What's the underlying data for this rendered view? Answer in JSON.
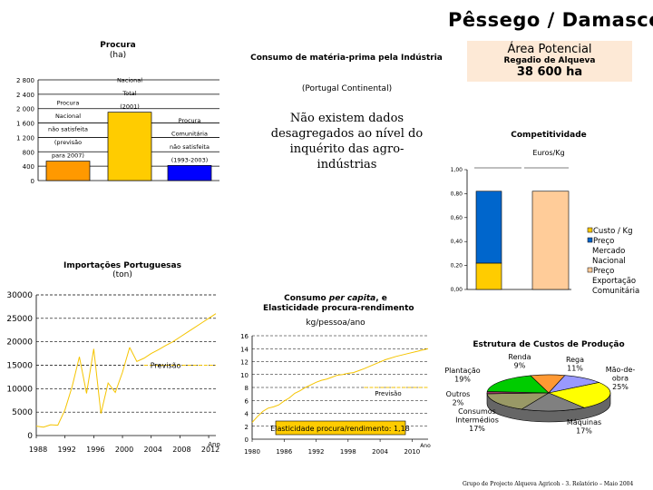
{
  "header": {
    "title": "Pêssego / Damasco",
    "area_title": "Área Potencial",
    "area_subtitle": "Regadio de Alqueva",
    "area_value": "38 600 ha"
  },
  "texts": {
    "consumo_title": "Consumo de matéria-prima pela Indústria",
    "portugal": "(Portugal Continental)",
    "nodata_1": "Não existem dados",
    "nodata_2": "desagregados ao nível do",
    "nodata_3": "inquérito das agro-indústrias",
    "footer": "Grupo de Projecto Alqueva Agricoh - 3. Relatório – Maio 2004"
  },
  "colors": {
    "orange": "#ff9900",
    "yellow": "#ffcc00",
    "blue": "#0000ff",
    "steel": "#0066cc",
    "peach": "#ffcc99",
    "line": "#f5c400"
  },
  "chart_data": [
    {
      "type": "bar",
      "title": "Procura",
      "subtitle": "(ha)",
      "categories": [
        "Procura Nacional não satisfeita (previsão para 2007)",
        "Procura Nacional Total (2001)",
        "Procura Comunitária não satisfeita (1993-2003)"
      ],
      "category_labels": [
        [
          "Procura",
          "Nacional",
          "não satisfeita",
          "(previsão",
          "para 2007)"
        ],
        [
          "Procura",
          "Nacional",
          "Total",
          "(2001)"
        ],
        [
          "Procura",
          "Comunitária",
          "não satisfeita",
          "(1993-2003)"
        ]
      ],
      "values": [
        540,
        1900,
        420
      ],
      "ylim": [
        0,
        2800
      ],
      "ticks": [
        "0",
        "400",
        "800",
        "1 200",
        "1 600",
        "2 000",
        "2 400",
        "2 800"
      ],
      "tick_values": [
        0,
        400,
        800,
        1200,
        1600,
        2000,
        2400,
        2800
      ]
    },
    {
      "type": "line",
      "title": "Importações Portuguesas",
      "subtitle": "(ton)",
      "x": [
        1988,
        1989,
        1990,
        1991,
        1992,
        1993,
        1994,
        1995,
        1996,
        1997,
        1998,
        1999,
        2000,
        2001
      ],
      "y": [
        2000,
        1800,
        2300,
        2200,
        5500,
        10500,
        16800,
        9000,
        18500,
        4700,
        11200,
        9200,
        13500,
        18800
      ],
      "trend": {
        "x": [
          2001,
          2002,
          2003,
          2004,
          2005,
          2006,
          2007,
          2008,
          2009,
          2010,
          2011,
          2012,
          2013
        ],
        "y": [
          18800,
          15800,
          16500,
          17500,
          18300,
          19200,
          20000,
          21000,
          22000,
          23000,
          24000,
          25000,
          26000
        ]
      },
      "forecast": {
        "x": [
          2003,
          2013
        ],
        "y": [
          15000,
          15000
        ],
        "label": "Previsão"
      },
      "xticks": [
        "1988",
        "1992",
        "1996",
        "2000",
        "2004",
        "2008",
        "2012"
      ],
      "xtick_values": [
        1988,
        1992,
        1996,
        2000,
        2004,
        2008,
        2012
      ],
      "xlabel": "Ano",
      "yticks": [
        "0",
        "5000",
        "10000",
        "15000",
        "20000",
        "25000",
        "30000"
      ],
      "ytick_values": [
        0,
        5000,
        10000,
        15000,
        20000,
        25000,
        30000
      ],
      "xlim": [
        1988,
        2013
      ],
      "ylim": [
        0,
        30000
      ]
    },
    {
      "type": "line",
      "title_1": "Consumo ",
      "title_em": "per capita",
      "title_2": ", e",
      "title_line2": "Elasticidade procura-rendimento",
      "ylabel": "kg/pessoa/ano",
      "x": [
        1980,
        1981,
        1982,
        1983,
        1984,
        1985,
        1986,
        1987,
        1988,
        1989,
        1990,
        1991,
        1992,
        1993,
        1994,
        1995,
        1996,
        1997,
        1998,
        1999,
        2000,
        2001
      ],
      "y": [
        2.6,
        3.5,
        4.3,
        4.8,
        5.0,
        5.3,
        5.9,
        6.4,
        7.1,
        7.5,
        8.0,
        8.4,
        8.8,
        9.1,
        9.3,
        9.6,
        9.9,
        10.0,
        10.2,
        10.3,
        10.6,
        10.9
      ],
      "trend": {
        "x": [
          2001,
          2003,
          2005,
          2007,
          2009,
          2011,
          2013
        ],
        "y": [
          10.9,
          11.6,
          12.3,
          12.8,
          13.2,
          13.6,
          14.0
        ]
      },
      "forecast": {
        "x": [
          2001,
          2013
        ],
        "y": [
          8.0,
          8.0
        ],
        "label": "Previsão"
      },
      "xticks": [
        "1980",
        "1986",
        "1992",
        "1998",
        "2004",
        "2010"
      ],
      "xtick_values": [
        1980,
        1986,
        1992,
        1998,
        2004,
        2010
      ],
      "xlabel": "Ano",
      "yticks": [
        "0",
        "2",
        "4",
        "6",
        "8",
        "10",
        "12",
        "14",
        "16"
      ],
      "ytick_values": [
        0,
        2,
        4,
        6,
        8,
        10,
        12,
        14,
        16
      ],
      "xlim": [
        1980,
        2013
      ],
      "ylim": [
        0,
        16
      ],
      "annotation": "Elasticidade procura/rendimento: 1,18"
    },
    {
      "type": "bar",
      "title": "Competitividade",
      "ylabel": "Euros/Kg",
      "stacked": true,
      "series": [
        {
          "name": "Custo / Kg",
          "values": [
            0.22,
            null
          ]
        },
        {
          "name": "Preço Mercado Nacional",
          "values": [
            0.6,
            null
          ]
        },
        {
          "name": "Preço Exportação Comunitária",
          "values": [
            null,
            0.82
          ]
        }
      ],
      "legend": [
        [
          "Custo / Kg"
        ],
        [
          "Preço",
          "Mercado",
          "Nacional"
        ],
        [
          "Preço",
          "Exportação",
          "Comunitária"
        ]
      ],
      "legend_position": "right",
      "yticks": [
        "0,00",
        "0,20",
        "0,40",
        "0,60",
        "0,80",
        "1,00"
      ],
      "ytick_values": [
        0,
        0.2,
        0.4,
        0.6,
        0.8,
        1.0
      ],
      "ylim": [
        0,
        1.0
      ]
    },
    {
      "type": "pie",
      "title": "Estrutura de Custos de Produção",
      "slices": [
        {
          "label": "Renda",
          "value": 9,
          "pct": "9%",
          "color": "#ff9933"
        },
        {
          "label": "Rega",
          "value": 11,
          "pct": "11%",
          "color": "#9999ff"
        },
        {
          "label": "Mão-de-obra",
          "value": 25,
          "pct": "25%",
          "color": "#ffff00"
        },
        {
          "label": "Máquinas",
          "value": 17,
          "pct": "17%",
          "color": "#808080"
        },
        {
          "label": "Consumos Intermédios",
          "value": 17,
          "pct": "17%",
          "color": "#999966"
        },
        {
          "label": "Outros",
          "value": 2,
          "pct": "2%",
          "color": "#993366"
        },
        {
          "label": "Plantação",
          "value": 19,
          "pct": "19%",
          "color": "#00cc00"
        }
      ],
      "label_lines": [
        [
          "Renda",
          "9%"
        ],
        [
          "Rega",
          "11%"
        ],
        [
          "Mão-de-",
          "obra",
          "25%"
        ],
        [
          "Máquinas",
          "17%"
        ],
        [
          "Consumos",
          "Intermédios",
          "17%"
        ],
        [
          "Outros",
          "2%"
        ],
        [
          "Plantação",
          "19%"
        ]
      ]
    }
  ]
}
